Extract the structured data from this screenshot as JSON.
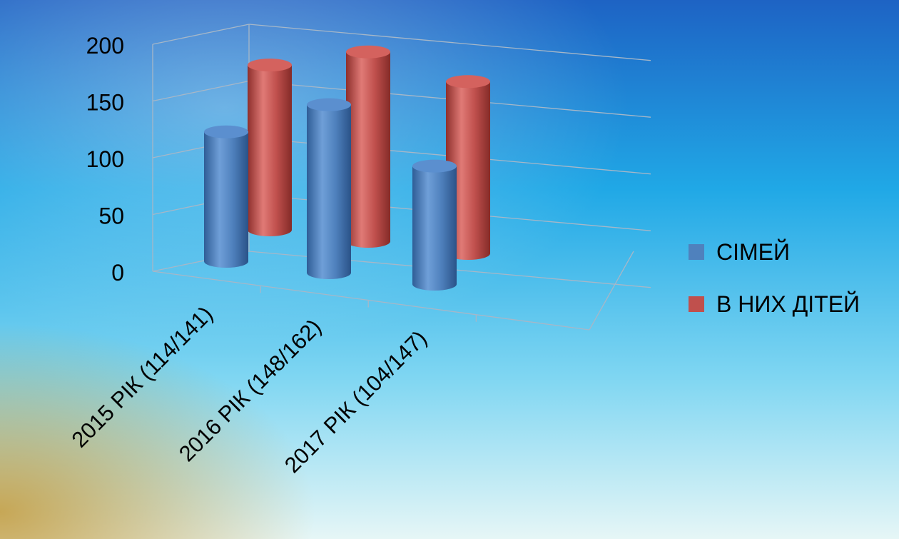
{
  "chart_data": {
    "type": "bar",
    "style": "3d-cylinder",
    "categories": [
      "2015 РІК (114/141)",
      "2016 РІК (148/162)",
      "2017 РІК (104/147)"
    ],
    "series": [
      {
        "name": "СІМЕЙ",
        "values": [
          114,
          148,
          104
        ],
        "color": "#4F81BD"
      },
      {
        "name": "В НИХ ДІТЕЙ",
        "values": [
          141,
          162,
          147
        ],
        "color": "#C0504D"
      }
    ],
    "y_ticks": [
      "0",
      "50",
      "100",
      "150",
      "200"
    ],
    "ylim": [
      0,
      200
    ],
    "grid": true,
    "legend_position": "right"
  },
  "colors": {
    "text": "#000000",
    "grid": "#A6B7C8"
  }
}
